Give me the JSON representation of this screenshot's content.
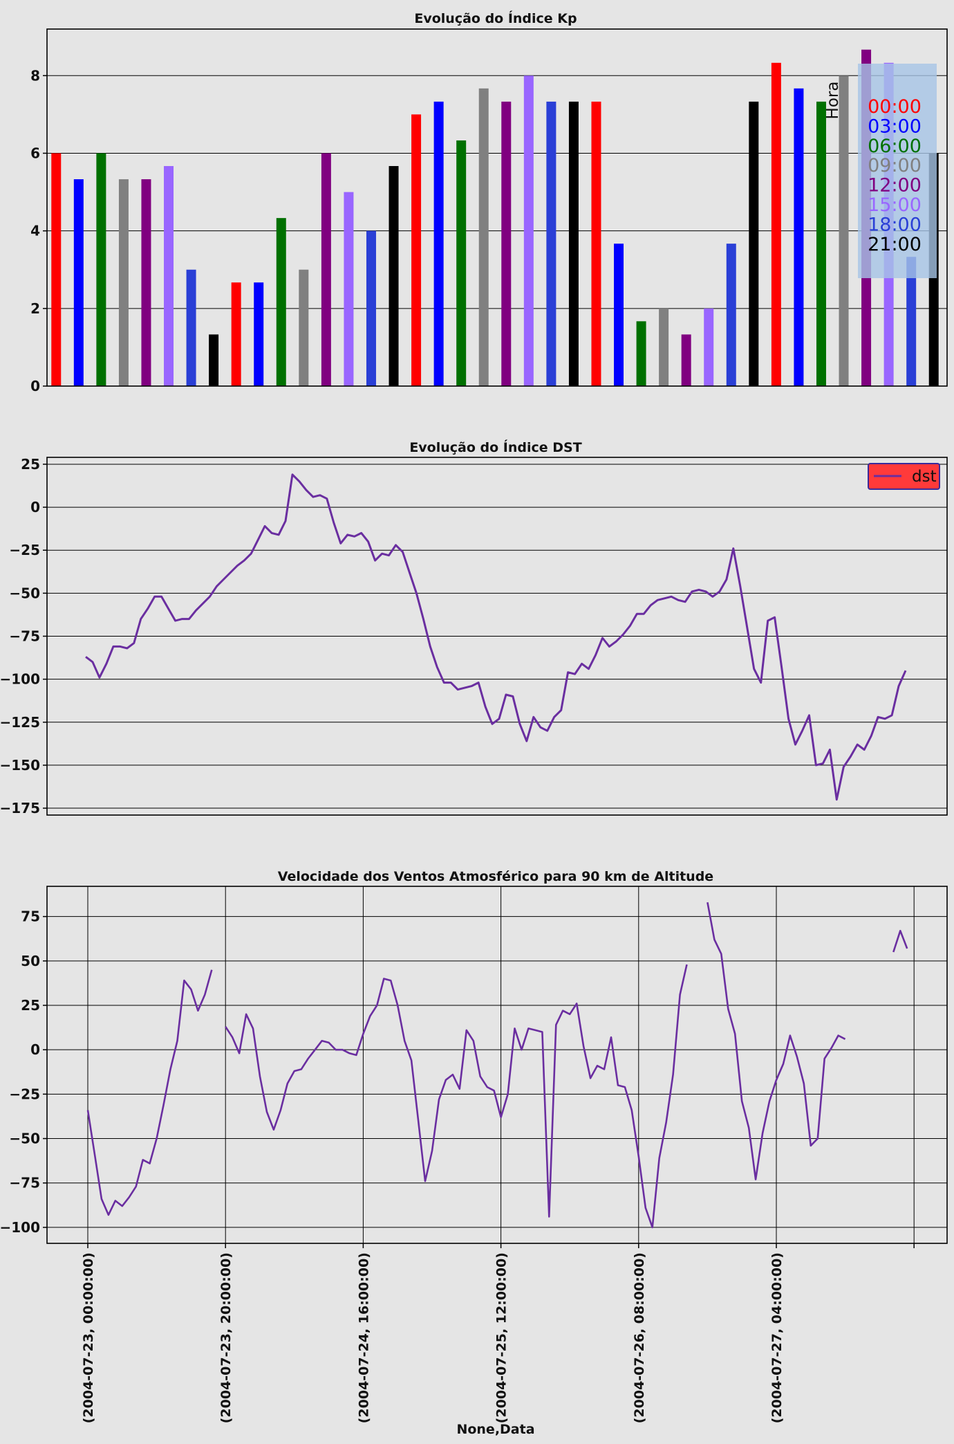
{
  "chart_data": [
    {
      "type": "bar",
      "title": "Evolução do Índice Kp",
      "ylim": [
        0,
        9.2
      ],
      "yticks": [
        "0",
        "2",
        "4",
        "6",
        "8"
      ],
      "grid": true,
      "legend": {
        "title": "Hora",
        "placement": "top-right",
        "entries": [
          {
            "label": "00:00",
            "color": "#ff0000"
          },
          {
            "label": "03:00",
            "color": "#0000ff"
          },
          {
            "label": "06:00",
            "color": "#007000"
          },
          {
            "label": "09:00",
            "color": "#808080"
          },
          {
            "label": "12:00",
            "color": "#800080"
          },
          {
            "label": "15:00",
            "color": "#9966ff"
          },
          {
            "label": "18:00",
            "color": "#2a3fd6"
          },
          {
            "label": "21:00",
            "color": "#000000"
          }
        ]
      },
      "values": [
        6,
        5.33,
        6,
        5.33,
        5.33,
        5.67,
        3,
        1.33,
        2.67,
        2.67,
        4.33,
        3,
        6,
        5,
        4,
        5.67,
        7,
        7.33,
        6.33,
        7.67,
        7.33,
        8,
        7.33,
        7.33,
        7.33,
        3.67,
        1.67,
        2,
        1.33,
        2,
        3.67,
        7.33,
        8.33,
        7.67,
        7.33,
        8,
        8.67,
        8.33,
        3.33,
        6
      ]
    },
    {
      "type": "line",
      "title": "Evolução do Índice DST",
      "ylim": [
        -179,
        29
      ],
      "yticks": [
        "25",
        "0",
        "−25",
        "−50",
        "−75",
        "−100",
        "−125",
        "−150",
        "−175"
      ],
      "grid": true,
      "legend": {
        "placement": "top-right",
        "entries": [
          {
            "label": "dst"
          }
        ]
      },
      "series": [
        {
          "name": "dst",
          "color": "#6a2ea0",
          "values": [
            -87,
            -90,
            -99,
            -91,
            -81,
            -81,
            -82,
            -79,
            -65,
            -59,
            -52,
            -52,
            -59,
            -66,
            -65,
            -65,
            -60,
            -56,
            -52,
            -46,
            -42,
            -38,
            -34,
            -31,
            -27,
            -19,
            -11,
            -15,
            -16,
            -8,
            19,
            15,
            10,
            6,
            7,
            5,
            -9,
            -21,
            -16,
            -17,
            -15,
            -20,
            -31,
            -27,
            -28,
            -22,
            -26,
            -38,
            -50,
            -65,
            -81,
            -93,
            -102,
            -102,
            -106,
            -105,
            -104,
            -102,
            -116,
            -126,
            -123,
            -109,
            -110,
            -126,
            -136,
            -122,
            -128,
            -130,
            -122,
            -118,
            -96,
            -97,
            -91,
            -94,
            -86,
            -76,
            -81,
            -78,
            -74,
            -69,
            -62,
            -62,
            -57,
            -54,
            -53,
            -52,
            -54,
            -55,
            -49,
            -48,
            -49,
            -52,
            -49,
            -42,
            -24,
            -46,
            -70,
            -94,
            -102,
            -66,
            -64,
            -93,
            -123,
            -138,
            -130,
            -121,
            -150,
            -149,
            -141,
            -170,
            -151,
            -145,
            -138,
            -141,
            -133,
            -122,
            -123,
            -121,
            -104,
            -95
          ]
        }
      ]
    },
    {
      "type": "line",
      "title": "Velocidade dos Ventos Atmosférico para 90 km de Altitude",
      "xlabel": "None,Data",
      "ylim": [
        -109,
        92
      ],
      "yticks": [
        "75",
        "50",
        "25",
        "0",
        "−25",
        "−50",
        "−75",
        "−100"
      ],
      "xticks": [
        "(2004-07-23, 00:00:00)",
        "(2004-07-23, 20:00:00)",
        "(2004-07-24, 16:00:00)",
        "(2004-07-25, 12:00:00)",
        "(2004-07-26, 08:00:00)",
        "(2004-07-27, 04:00:00)"
      ],
      "grid": true,
      "series": [
        {
          "name": "",
          "color": "#6a2ea0",
          "values": [
            -34,
            -59,
            -84,
            -93,
            -85,
            -88,
            -83,
            -77,
            -62,
            -64,
            -50,
            -31,
            -11,
            5,
            39,
            34,
            22,
            31,
            45,
            null,
            13,
            7,
            -2,
            20,
            12,
            -15,
            -35,
            -45,
            -34,
            -19,
            -12,
            -11,
            -5,
            0,
            5,
            4,
            0,
            0,
            -2,
            -3,
            9,
            19,
            25,
            40,
            39,
            25,
            5,
            -6,
            -40,
            -74,
            -57,
            -28,
            -17,
            -14,
            -22,
            11,
            5,
            -15,
            -21,
            -23,
            -38,
            -25,
            12,
            0,
            12,
            11,
            10,
            -94,
            14,
            22,
            20,
            26,
            2,
            -16,
            -9,
            -11,
            7,
            -20,
            -21,
            -34,
            -60,
            -89,
            -100,
            -61,
            -41,
            -14,
            31,
            48,
            null,
            null,
            83,
            62,
            54,
            23,
            9,
            -29,
            -44,
            -73,
            -47,
            -29,
            -17,
            -8,
            8,
            -4,
            -19,
            -54,
            -50,
            -5,
            1,
            8,
            6,
            null,
            null,
            null,
            null,
            null,
            null,
            55,
            67,
            57
          ]
        }
      ]
    }
  ]
}
